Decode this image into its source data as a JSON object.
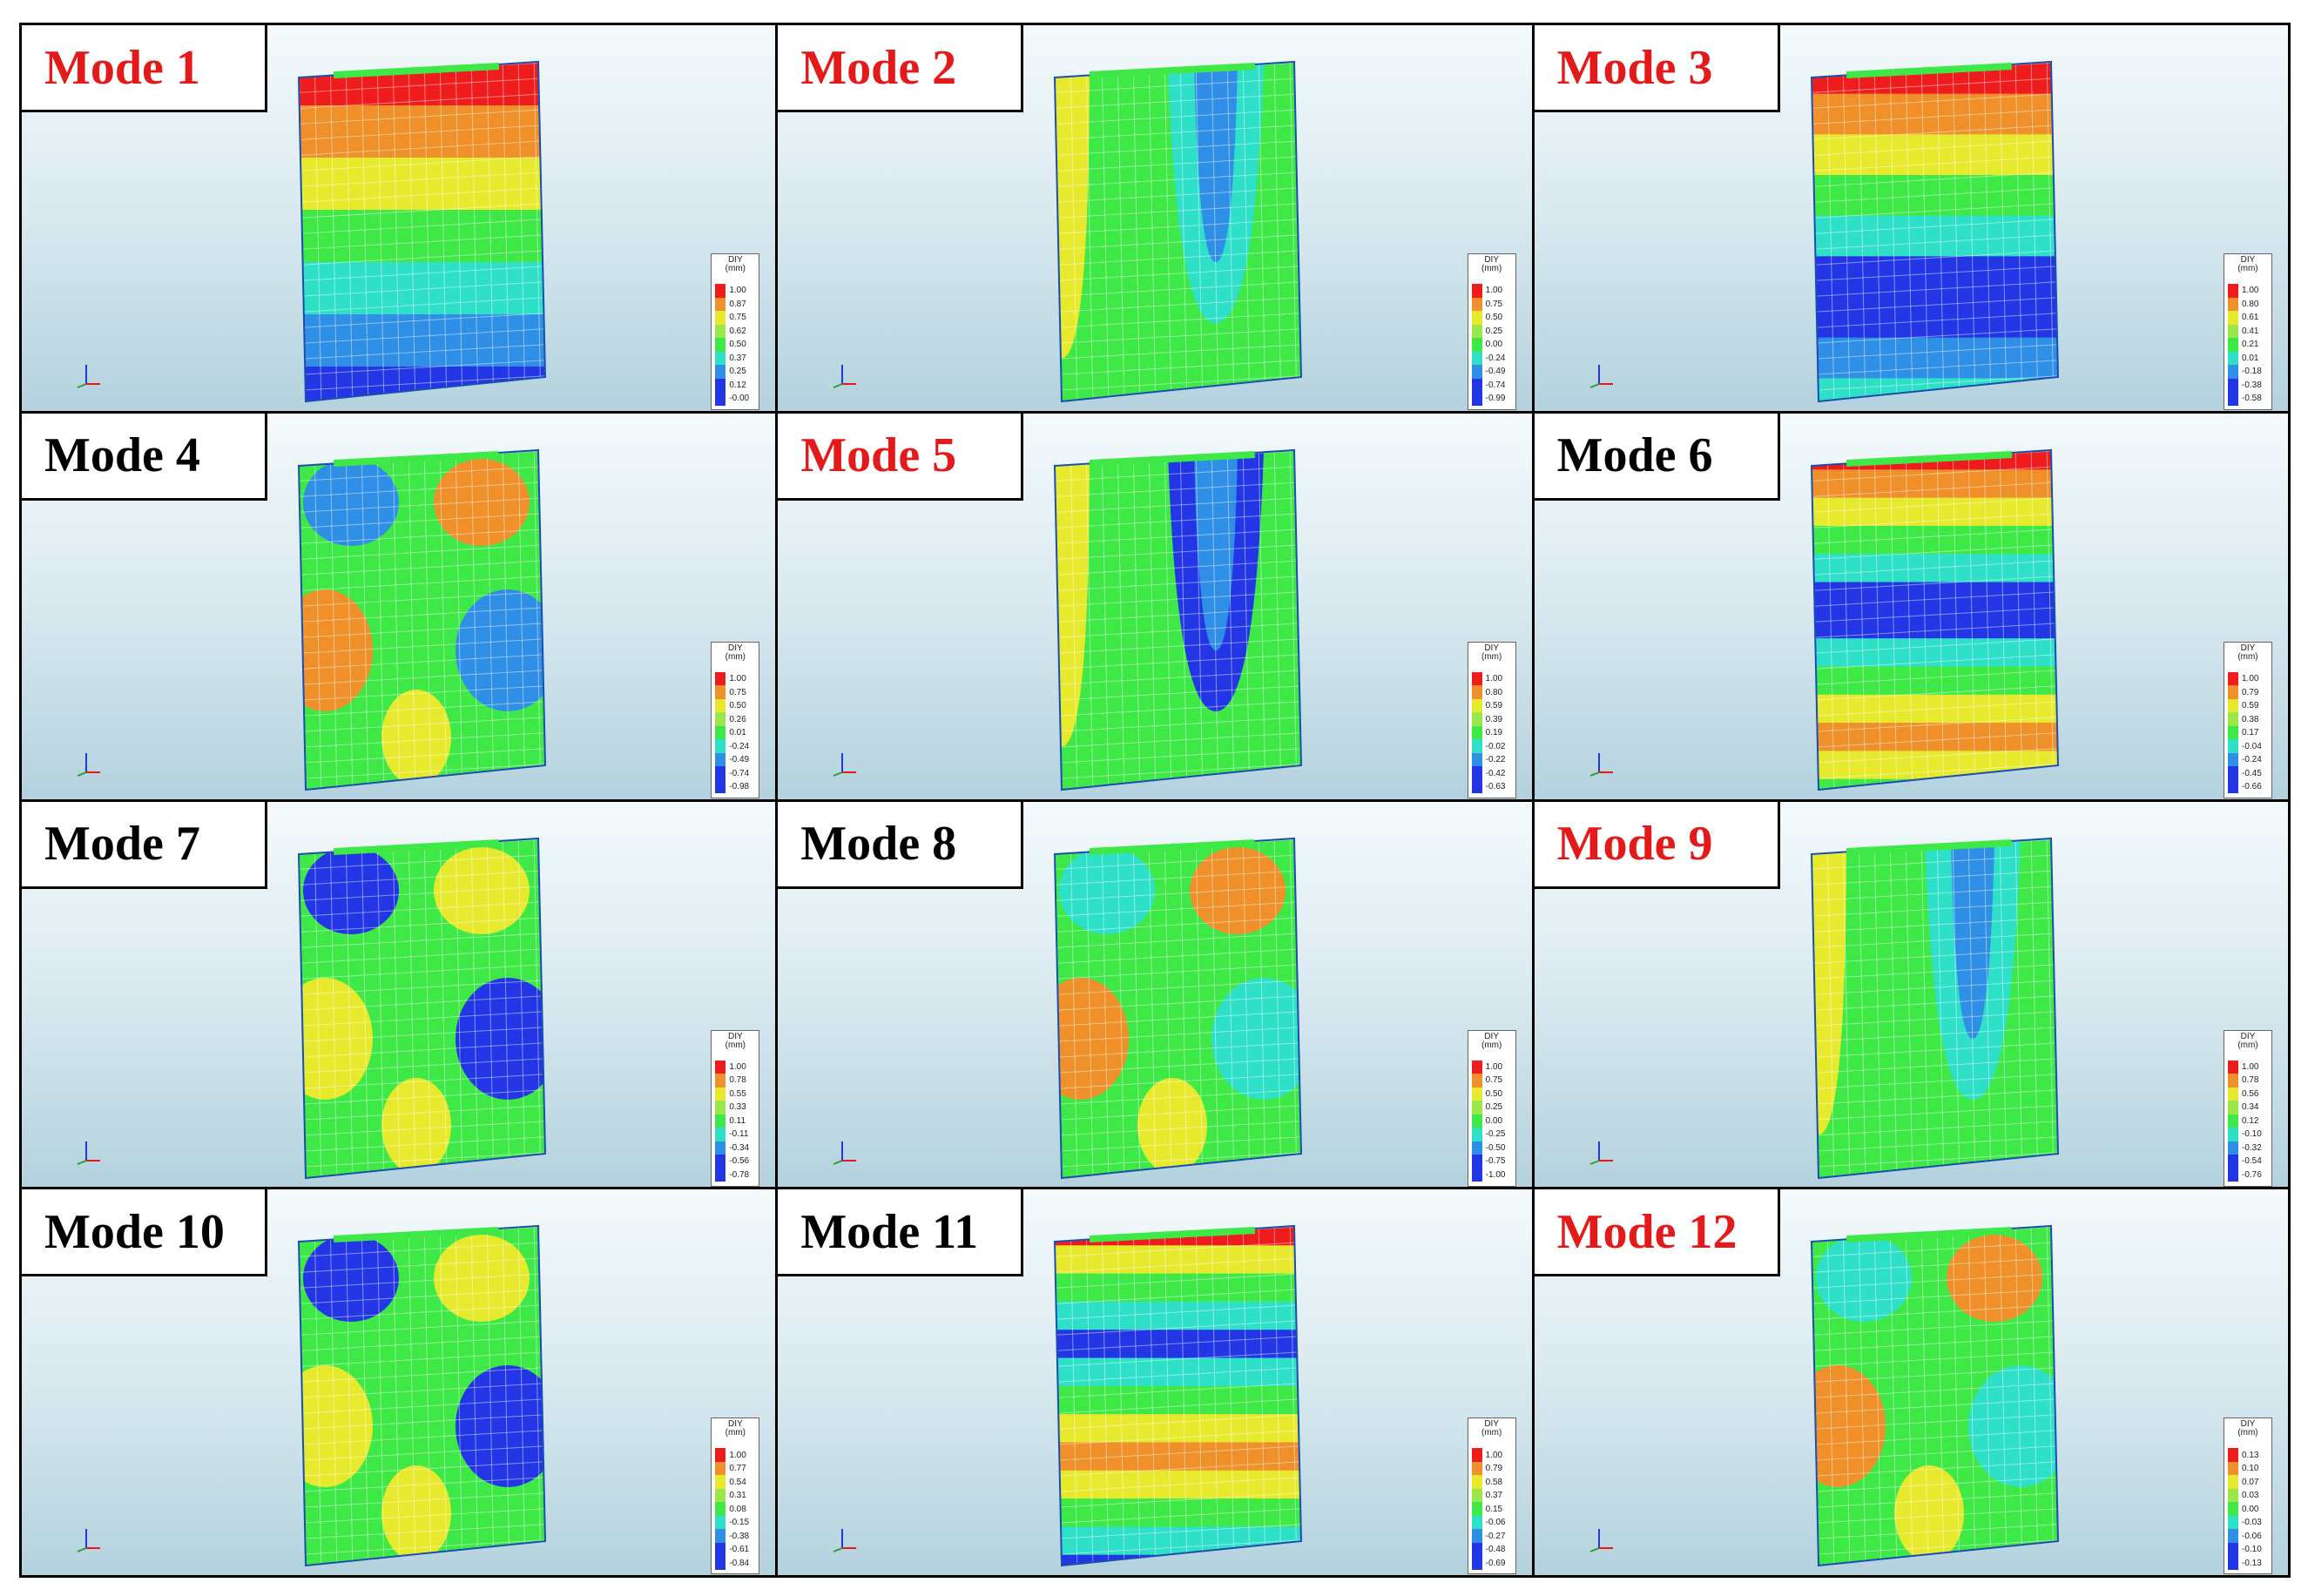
{
  "legend_title": "DIY\n(mm)",
  "legend_colors": [
    "#ee1c1c",
    "#f0902a",
    "#e6e92c",
    "#9ae74a",
    "#3ee846",
    "#2ee0c8",
    "#2f8ee6",
    "#2236e6"
  ],
  "panels": [
    {
      "label": "Mode 1",
      "label_color": "#e41a1a",
      "legend": [
        "1.00",
        "0.87",
        "0.75",
        "0.62",
        "0.50",
        "0.37",
        "0.25",
        "0.12",
        "-0.00"
      ],
      "shape": "bands",
      "colors": [
        "#ee1c1c",
        "#f0902a",
        "#e6e92c",
        "#3ee846",
        "#2ee0c8",
        "#2f8ee6",
        "#2236e6"
      ]
    },
    {
      "label": "Mode 2",
      "label_color": "#e41a1a",
      "legend": [
        "1.00",
        "0.75",
        "0.50",
        "0.25",
        "0.00",
        "-0.24",
        "-0.49",
        "-0.74",
        "-0.99"
      ],
      "shape": "verticalU",
      "colors": [
        "#3ee846",
        "#e6e92c",
        "#2ee0c8"
      ]
    },
    {
      "label": "Mode 3",
      "label_color": "#e41a1a",
      "legend": [
        "1.00",
        "0.80",
        "0.61",
        "0.41",
        "0.21",
        "0.01",
        "-0.18",
        "-0.38",
        "-0.58"
      ],
      "shape": "bands",
      "colors": [
        "#ee1c1c",
        "#f0902a",
        "#e6e92c",
        "#3ee846",
        "#2ee0c8",
        "#2236e6",
        "#2236e6",
        "#2f8ee6",
        "#2ee0c8"
      ]
    },
    {
      "label": "Mode 4",
      "label_color": "#000000",
      "legend": [
        "1.00",
        "0.75",
        "0.50",
        "0.26",
        "0.01",
        "-0.24",
        "-0.49",
        "-0.74",
        "-0.98"
      ],
      "shape": "cells",
      "colors": [
        "#3ee846",
        "#f0902a",
        "#2f8ee6"
      ]
    },
    {
      "label": "Mode 5",
      "label_color": "#e41a1a",
      "legend": [
        "1.00",
        "0.80",
        "0.59",
        "0.39",
        "0.19",
        "-0.02",
        "-0.22",
        "-0.42",
        "-0.63"
      ],
      "shape": "verticalU",
      "colors": [
        "#3ee846",
        "#e6e92c",
        "#2236e6"
      ]
    },
    {
      "label": "Mode 6",
      "label_color": "#000000",
      "legend": [
        "1.00",
        "0.79",
        "0.59",
        "0.38",
        "0.17",
        "-0.04",
        "-0.24",
        "-0.45",
        "-0.66"
      ],
      "shape": "bands",
      "colors": [
        "#ee1c1c",
        "#f0902a",
        "#e6e92c",
        "#3ee846",
        "#2ee0c8",
        "#2236e6",
        "#2236e6",
        "#2ee0c8",
        "#3ee846",
        "#e6e92c",
        "#f0902a",
        "#e6e92c",
        "#3ee846"
      ]
    },
    {
      "label": "Mode 7",
      "label_color": "#000000",
      "legend": [
        "1.00",
        "0.78",
        "0.55",
        "0.33",
        "0.11",
        "-0.11",
        "-0.34",
        "-0.56",
        "-0.78"
      ],
      "shape": "cells",
      "colors": [
        "#3ee846",
        "#e6e92c",
        "#2236e6"
      ]
    },
    {
      "label": "Mode 8",
      "label_color": "#000000",
      "legend": [
        "1.00",
        "0.75",
        "0.50",
        "0.25",
        "0.00",
        "-0.25",
        "-0.50",
        "-0.75",
        "-1.00"
      ],
      "shape": "cells",
      "colors": [
        "#3ee846",
        "#f0902a",
        "#2ee0c8"
      ]
    },
    {
      "label": "Mode 9",
      "label_color": "#e41a1a",
      "legend": [
        "1.00",
        "0.78",
        "0.56",
        "0.34",
        "0.12",
        "-0.10",
        "-0.32",
        "-0.54",
        "-0.76"
      ],
      "shape": "verticalU",
      "colors": [
        "#3ee846",
        "#e6e92c",
        "#2ee0c8"
      ]
    },
    {
      "label": "Mode 10",
      "label_color": "#000000",
      "legend": [
        "1.00",
        "0.77",
        "0.54",
        "0.31",
        "0.08",
        "-0.15",
        "-0.38",
        "-0.61",
        "-0.84"
      ],
      "shape": "cells",
      "colors": [
        "#3ee846",
        "#e6e92c",
        "#2236e6"
      ]
    },
    {
      "label": "Mode 11",
      "label_color": "#000000",
      "legend": [
        "1.00",
        "0.79",
        "0.58",
        "0.37",
        "0.15",
        "-0.06",
        "-0.27",
        "-0.48",
        "-0.69"
      ],
      "shape": "bands",
      "colors": [
        "#ee1c1c",
        "#e6e92c",
        "#3ee846",
        "#2ee0c8",
        "#2236e6",
        "#2ee0c8",
        "#3ee846",
        "#e6e92c",
        "#f0902a",
        "#e6e92c",
        "#3ee846",
        "#2ee0c8",
        "#2236e6"
      ]
    },
    {
      "label": "Mode 12",
      "label_color": "#e41a1a",
      "legend": [
        "0.13",
        "0.10",
        "0.07",
        "0.03",
        "0.00",
        "-0.03",
        "-0.06",
        "-0.10",
        "-0.13"
      ],
      "shape": "cells",
      "colors": [
        "#3ee846",
        "#f0902a",
        "#2ee0c8"
      ]
    }
  ]
}
